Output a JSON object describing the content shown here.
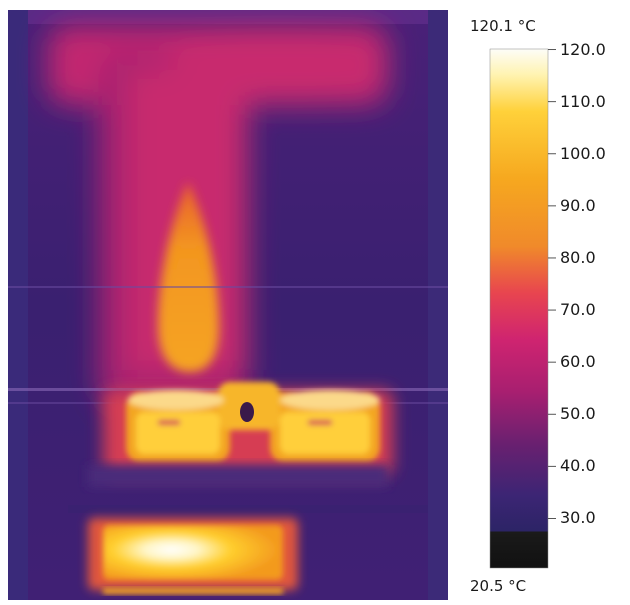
{
  "image": {
    "description_icon": "thermal-camera-image",
    "palette": {
      "cold": "#2a1e6e",
      "mid": "#cc1f6f",
      "warm": "#f07a1e",
      "hot": "#ffd43a",
      "hottest": "#fffce8"
    }
  },
  "scale": {
    "max_label": "120.1 °C",
    "min_label": "20.5 °C",
    "ticks": [
      "120.0",
      "110.0",
      "100.0",
      "90.0",
      "80.0",
      "70.0",
      "60.0",
      "50.0",
      "40.0",
      "30.0"
    ],
    "min_value": 20.5,
    "max_value": 120.1
  }
}
